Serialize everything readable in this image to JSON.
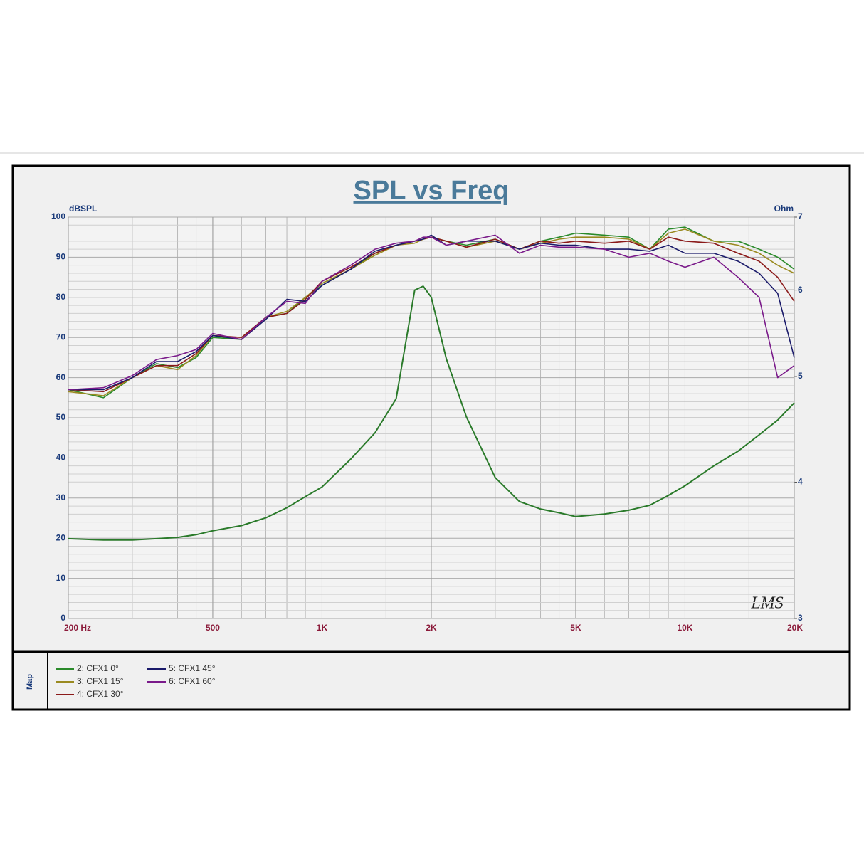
{
  "chart_data": {
    "type": "line",
    "title": "SPL vs Freq",
    "y_label": "dBSPL",
    "y2_label": "Ohm",
    "legend_title": "Map",
    "watermark": "LMS",
    "xlog": true,
    "y2log": true,
    "grid": true,
    "xlim": [
      200,
      20000
    ],
    "xticks": [
      {
        "value": 200,
        "label": "200  Hz"
      },
      500,
      {
        "value": 1000,
        "label": "1K"
      },
      {
        "value": 2000,
        "label": "2K"
      },
      {
        "value": 5000,
        "label": "5K"
      },
      {
        "value": 10000,
        "label": "10K"
      },
      {
        "value": 20000,
        "label": "20K"
      }
    ],
    "ylim": [
      0,
      100
    ],
    "yticks": [
      0,
      10,
      20,
      30,
      40,
      50,
      60,
      70,
      80,
      90,
      100
    ],
    "y2lim": [
      3,
      7
    ],
    "y2ticks": [
      3,
      4,
      5,
      6,
      7
    ],
    "x": [
      200,
      250,
      300,
      350,
      400,
      450,
      500,
      600,
      700,
      800,
      900,
      1000,
      1200,
      1400,
      1600,
      1800,
      1900,
      2000,
      2200,
      2500,
      3000,
      3500,
      4000,
      4500,
      5000,
      6000,
      7000,
      8000,
      9000,
      10000,
      12000,
      14000,
      16000,
      18000,
      20000
    ],
    "series": [
      {
        "name": "2: CFX1  0°",
        "color": "#2a8a2a",
        "values": [
          57,
          55,
          60,
          63.5,
          62.5,
          65,
          70,
          69.5,
          75,
          76,
          80,
          83,
          87,
          91,
          93,
          94,
          94.5,
          95,
          94,
          93,
          94.5,
          92,
          94,
          95,
          96,
          95.5,
          95,
          92,
          97,
          97.5,
          94,
          94,
          92,
          90,
          87
        ]
      },
      {
        "name": "3: CFX1  15°",
        "color": "#9a8a20",
        "values": [
          56.5,
          55.5,
          60,
          63,
          62,
          65.5,
          70.5,
          69.5,
          75,
          76.5,
          80,
          83.5,
          87,
          90.5,
          93,
          93.5,
          94.5,
          95,
          94,
          92.5,
          94,
          92,
          93.5,
          94.5,
          95,
          95,
          94.5,
          92,
          96,
          97,
          94,
          93,
          91,
          88,
          86
        ]
      },
      {
        "name": "4: CFX1  30°",
        "color": "#8b1a1a",
        "values": [
          57,
          56.5,
          60,
          63,
          63,
          66,
          70.5,
          70,
          75,
          76,
          79.5,
          84,
          87.5,
          91,
          93,
          94,
          94.5,
          95,
          94,
          92.5,
          94.5,
          92,
          94,
          93.5,
          94,
          93.5,
          94,
          92,
          95,
          94,
          93.5,
          91,
          89,
          85,
          79
        ]
      },
      {
        "name": "5: CFX1  45°",
        "color": "#1a1a6a",
        "values": [
          57,
          57,
          60,
          64,
          64,
          66.5,
          70.5,
          69.5,
          74.5,
          79.5,
          79,
          83,
          87,
          91.5,
          93,
          94,
          94.5,
          95.5,
          93,
          94,
          94,
          92,
          93.5,
          93,
          93,
          92,
          92,
          91.5,
          93,
          91,
          91,
          89,
          86,
          81,
          65
        ]
      },
      {
        "name": "6: CFX1  60°",
        "color": "#7a1a8a",
        "values": [
          57,
          57.5,
          60.5,
          64.5,
          65.5,
          67,
          71,
          69.5,
          75,
          79,
          78.5,
          84,
          88,
          92,
          93.5,
          94,
          95,
          95,
          93,
          94,
          95.5,
          91,
          93,
          92.5,
          92.5,
          92,
          90,
          91,
          89,
          87.5,
          90,
          85,
          80,
          60,
          63
        ]
      },
      {
        "color": "#2a7a2a",
        "axis": "y2",
        "values": [
          3.55,
          3.54,
          3.54,
          3.55,
          3.56,
          3.58,
          3.61,
          3.65,
          3.71,
          3.79,
          3.88,
          3.96,
          4.2,
          4.44,
          4.77,
          6.0,
          6.05,
          5.91,
          5.19,
          4.59,
          4.04,
          3.84,
          3.78,
          3.75,
          3.72,
          3.74,
          3.77,
          3.81,
          3.89,
          3.97,
          4.14,
          4.27,
          4.42,
          4.56,
          4.73
        ]
      }
    ]
  }
}
